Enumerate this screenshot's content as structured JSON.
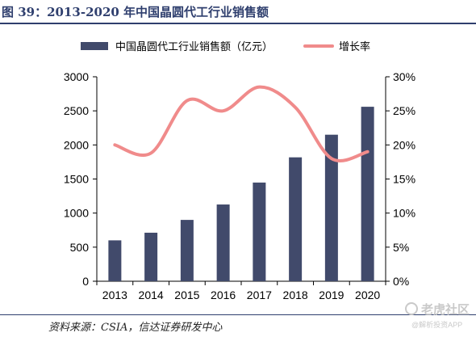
{
  "title": "图 39：2013-2020 年中国晶圆代工行业销售额",
  "source": "资料来源：CSIA，信达证券研发中心",
  "watermark": {
    "brand": "老虎社区",
    "sub": "@解析投资APP"
  },
  "colors": {
    "bar": "#414a6b",
    "line": "#f08b8b",
    "title": "#2f3f6e",
    "axis": "#000000"
  },
  "chart_data": {
    "type": "bar",
    "categories": [
      "2013",
      "2014",
      "2015",
      "2016",
      "2017",
      "2018",
      "2019",
      "2020"
    ],
    "series": [
      {
        "name": "中国晶圆代工行业销售额（亿元）",
        "type": "bar",
        "axis": "left",
        "values": [
          600,
          712,
          900,
          1126,
          1448,
          1818,
          2150,
          2560
        ]
      },
      {
        "name": "增长率",
        "type": "line",
        "axis": "right",
        "values": [
          0.2,
          0.188,
          0.265,
          0.25,
          0.285,
          0.255,
          0.18,
          0.19
        ]
      }
    ],
    "ylim": [
      0,
      3000
    ],
    "yticks": [
      "0",
      "500",
      "1000",
      "1500",
      "2000",
      "2500",
      "3000"
    ],
    "y2lim": [
      0,
      0.3
    ],
    "y2ticks": [
      "0%",
      "5%",
      "10%",
      "15%",
      "20%",
      "25%",
      "30%"
    ],
    "legend": "top",
    "grid": false
  }
}
